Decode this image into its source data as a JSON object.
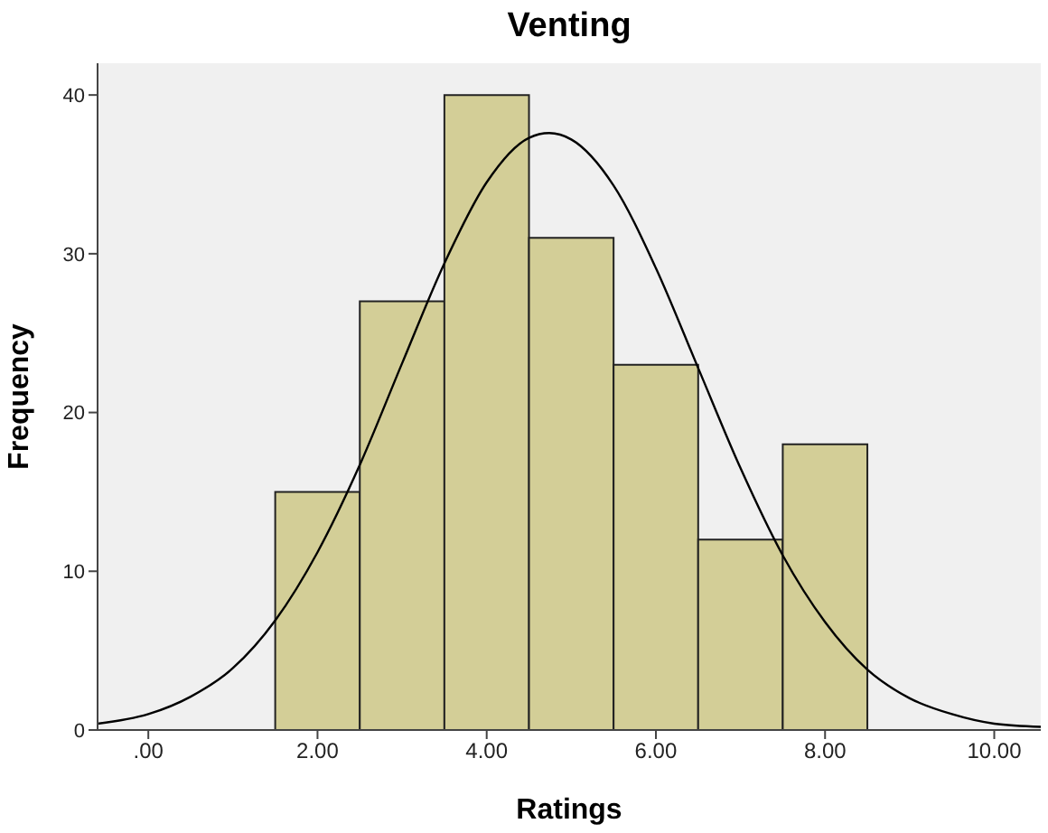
{
  "chart_data": {
    "type": "histogram",
    "title": "Venting",
    "xlabel": "Ratings",
    "ylabel": "Frequency",
    "bins": [
      1.5,
      2.5,
      3.5,
      4.5,
      5.5,
      6.5,
      7.5,
      8.5
    ],
    "values": [
      15,
      27,
      40,
      31,
      23,
      12,
      18
    ],
    "color": "#d3ce97",
    "series": [
      {
        "type": "line",
        "color": "#000000",
        "x": [
          -0.6,
          0,
          0.5,
          1,
          1.5,
          2,
          2.5,
          3,
          3.5,
          4,
          4.5,
          4.74,
          5,
          5.5,
          6,
          6.5,
          7,
          7.5,
          8,
          8.5,
          9,
          9.5,
          10,
          10.55
        ],
        "values": [
          0.4,
          1.0,
          2.1,
          3.9,
          6.9,
          11.2,
          16.7,
          23.1,
          29.4,
          34.5,
          37.3,
          37.6,
          37.2,
          34.3,
          29.1,
          22.8,
          16.5,
          11.0,
          6.8,
          3.8,
          2.0,
          1.0,
          0.4,
          0.2
        ]
      }
    ],
    "xlim": [
      -0.6,
      10.55
    ],
    "xticks": [
      {
        "value": 0,
        "label": ".00"
      },
      {
        "value": 2,
        "label": "2.00"
      },
      {
        "value": 4,
        "label": "4.00"
      },
      {
        "value": 6,
        "label": "6.00"
      },
      {
        "value": 8,
        "label": "8.00"
      },
      {
        "value": 10,
        "label": "10.00"
      }
    ],
    "ylim": [
      0,
      42
    ],
    "yticks": [
      0,
      10,
      20,
      30,
      40
    ],
    "marker": "none"
  }
}
